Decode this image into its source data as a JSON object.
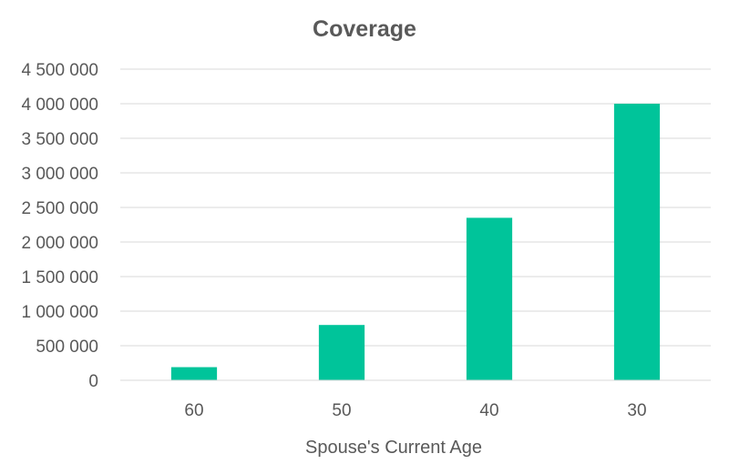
{
  "chart_data": {
    "type": "bar",
    "title": "Coverage",
    "xlabel": "Spouse's Current Age",
    "ylabel": "",
    "categories": [
      "60",
      "50",
      "40",
      "30"
    ],
    "series": [
      {
        "values": [
          190000,
          800000,
          2350000,
          4000000
        ],
        "color": "#00C49A"
      }
    ],
    "ylim": [
      0,
      4500000
    ],
    "y_ticks": [
      0,
      500000,
      1000000,
      1500000,
      2000000,
      2500000,
      3000000,
      3500000,
      4000000,
      4500000
    ],
    "y_tick_labels": [
      "0",
      "500 000",
      "1 000 000",
      "1 500 000",
      "2 000 000",
      "2 500 000",
      "3 000 000",
      "3 500 000",
      "4 000 000",
      "4 500 000"
    ],
    "grid": true,
    "legend": "none"
  }
}
